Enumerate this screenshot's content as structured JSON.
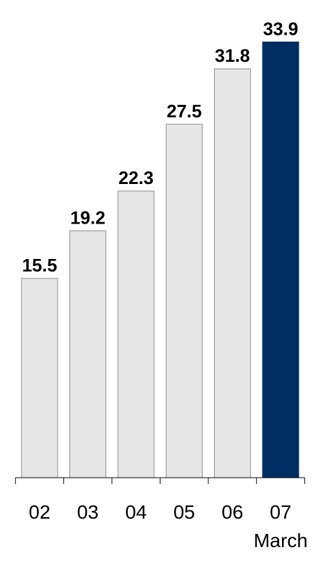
{
  "chart_data": {
    "type": "bar",
    "categories": [
      "02",
      "03",
      "04",
      "05",
      "06",
      "07"
    ],
    "values": [
      15.5,
      19.2,
      22.3,
      27.5,
      31.8,
      33.9
    ],
    "value_labels": [
      "15.5",
      "19.2",
      "22.3",
      "27.5",
      "31.8",
      "33.9"
    ],
    "highlight_index": 5,
    "annotation": "March",
    "title": "",
    "xlabel": "",
    "ylabel": "",
    "ylim": [
      0,
      35
    ],
    "grid": false,
    "legend": "none",
    "colors": {
      "bar": "#e6e6e6",
      "bar_stroke": "#8c8c8c",
      "highlight": "#002e62",
      "axis": "#000000"
    }
  }
}
